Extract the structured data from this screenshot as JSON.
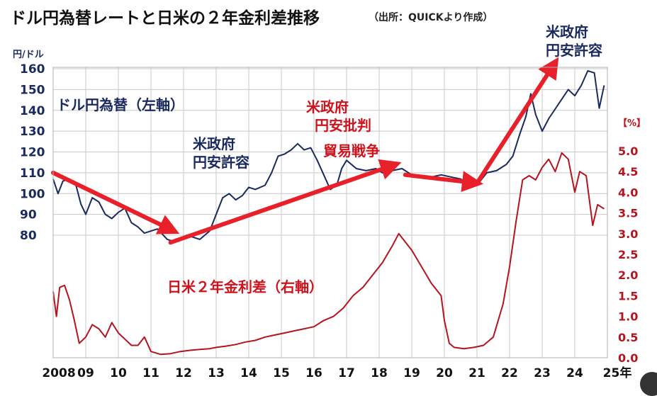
{
  "title": "ドル円為替レートと日米の２年金利差推移",
  "source": "（出所：QUICKより作成）",
  "colors": {
    "usdjpy": "#1a2a5e",
    "spread": "#b4141e",
    "arrow": "#e8202a",
    "grid": "#c8c8c8",
    "annot_blue": "#1a2a5e",
    "annot_red": "#d0121c"
  },
  "chart_data": {
    "type": "line",
    "title": "ドル円為替レートと日米の２年金利差推移",
    "x_ticks": [
      "2008",
      "09",
      "10",
      "11",
      "12",
      "13",
      "14",
      "15",
      "16",
      "17",
      "18",
      "19",
      "20",
      "21",
      "22",
      "23",
      "24",
      "25年"
    ],
    "xlim": [
      2008,
      2025
    ],
    "left_axis": {
      "unit": "円/ドル",
      "ticks": [
        "80",
        "90",
        "100",
        "110",
        "120",
        "130",
        "140",
        "150",
        "160"
      ],
      "ylim": [
        80,
        160
      ]
    },
    "right_axis": {
      "unit": "【%】",
      "ticks": [
        "0.0",
        "0.5",
        "1.0",
        "1.5",
        "2.0",
        "2.5",
        "3.0",
        "3.5",
        "4.0",
        "4.5",
        "5.0"
      ],
      "ylim": [
        0,
        5
      ]
    },
    "grid": true,
    "series": [
      {
        "name": "ドル円為替（左軸）",
        "axis": "left",
        "x": [
          2008.0,
          2008.15,
          2008.3,
          2008.5,
          2008.7,
          2008.85,
          2009.0,
          2009.2,
          2009.4,
          2009.6,
          2009.8,
          2010.0,
          2010.2,
          2010.4,
          2010.6,
          2010.8,
          2011.0,
          2011.2,
          2011.5,
          2011.7,
          2011.9,
          2012.1,
          2012.3,
          2012.5,
          2012.8,
          2013.0,
          2013.2,
          2013.4,
          2013.6,
          2013.8,
          2014.0,
          2014.2,
          2014.5,
          2014.7,
          2014.9,
          2015.1,
          2015.3,
          2015.5,
          2015.7,
          2015.9,
          2016.1,
          2016.3,
          2016.5,
          2016.7,
          2016.85,
          2017.0,
          2017.3,
          2017.6,
          2017.9,
          2018.1,
          2018.4,
          2018.7,
          2019.0,
          2019.3,
          2019.6,
          2019.9,
          2020.2,
          2020.5,
          2020.8,
          2021.0,
          2021.3,
          2021.6,
          2021.9,
          2022.1,
          2022.3,
          2022.5,
          2022.65,
          2022.8,
          2023.0,
          2023.2,
          2023.5,
          2023.8,
          2024.0,
          2024.2,
          2024.4,
          2024.6,
          2024.75,
          2024.9
        ],
        "values": [
          107,
          100,
          106,
          107,
          104,
          95,
          90,
          98,
          96,
          90,
          88,
          91,
          93,
          86,
          84,
          81,
          82,
          83,
          78,
          77,
          78,
          80,
          79,
          78,
          82,
          90,
          98,
          100,
          97,
          99,
          103,
          102,
          104,
          110,
          118,
          119,
          121,
          124,
          121,
          122,
          116,
          109,
          102,
          104,
          112,
          116,
          112,
          111,
          112,
          110,
          111,
          112,
          109,
          108,
          108,
          109,
          108,
          107,
          104,
          104,
          110,
          111,
          114,
          118,
          128,
          137,
          148,
          138,
          130,
          136,
          143,
          150,
          147,
          152,
          159,
          158,
          141,
          152
        ]
      },
      {
        "name": "日米２年金利差（右軸）",
        "axis": "right",
        "x": [
          2008.0,
          2008.1,
          2008.2,
          2008.35,
          2008.5,
          2008.65,
          2008.8,
          2009.0,
          2009.2,
          2009.4,
          2009.6,
          2009.8,
          2010.0,
          2010.2,
          2010.4,
          2010.6,
          2010.8,
          2011.0,
          2011.3,
          2011.6,
          2011.9,
          2012.2,
          2012.5,
          2012.8,
          2013.0,
          2013.3,
          2013.6,
          2013.9,
          2014.2,
          2014.5,
          2014.8,
          2015.1,
          2015.4,
          2015.7,
          2016.0,
          2016.3,
          2016.6,
          2016.9,
          2017.2,
          2017.5,
          2017.8,
          2018.1,
          2018.4,
          2018.6,
          2018.8,
          2019.0,
          2019.3,
          2019.6,
          2019.9,
          2020.0,
          2020.15,
          2020.3,
          2020.6,
          2020.9,
          2021.2,
          2021.5,
          2021.8,
          2022.0,
          2022.2,
          2022.4,
          2022.6,
          2022.8,
          2023.0,
          2023.2,
          2023.4,
          2023.6,
          2023.8,
          2024.0,
          2024.15,
          2024.35,
          2024.55,
          2024.7,
          2024.9
        ],
        "values": [
          1.6,
          1.0,
          1.7,
          1.75,
          1.4,
          0.9,
          0.35,
          0.5,
          0.8,
          0.7,
          0.5,
          0.85,
          0.6,
          0.45,
          0.3,
          0.3,
          0.5,
          0.15,
          0.08,
          0.1,
          0.15,
          0.18,
          0.2,
          0.22,
          0.25,
          0.28,
          0.32,
          0.38,
          0.42,
          0.5,
          0.55,
          0.6,
          0.65,
          0.7,
          0.75,
          0.9,
          1.0,
          1.2,
          1.5,
          1.7,
          2.0,
          2.3,
          2.7,
          3.0,
          2.8,
          2.6,
          2.2,
          1.8,
          1.5,
          0.9,
          0.35,
          0.25,
          0.22,
          0.25,
          0.3,
          0.5,
          1.3,
          2.2,
          3.3,
          4.3,
          4.4,
          4.3,
          4.6,
          4.8,
          4.5,
          4.95,
          4.8,
          4.0,
          4.5,
          4.4,
          3.2,
          3.7,
          3.6
        ]
      }
    ],
    "annotations": [
      {
        "text": "ドル円為替（左軸）",
        "color": "blue"
      },
      {
        "text": "米政府\n円安許容",
        "color": "blue"
      },
      {
        "text": "米政府\n円安批判",
        "color": "red"
      },
      {
        "text": "貿易戦争",
        "color": "red"
      },
      {
        "text": "米政府\n円安許容",
        "color": "blue"
      },
      {
        "text": "日米２年金利差（右軸）",
        "color": "red"
      }
    ],
    "arrows": [
      {
        "from": [
          2008.0,
          110
        ],
        "to": [
          2011.7,
          82
        ]
      },
      {
        "from": [
          2011.6,
          76.5
        ],
        "to": [
          2018.5,
          114
        ]
      },
      {
        "from": [
          2018.8,
          109
        ],
        "to": [
          2021.0,
          105
        ]
      },
      {
        "from": [
          2021.0,
          105
        ],
        "to": [
          2023.4,
          163
        ]
      }
    ]
  }
}
